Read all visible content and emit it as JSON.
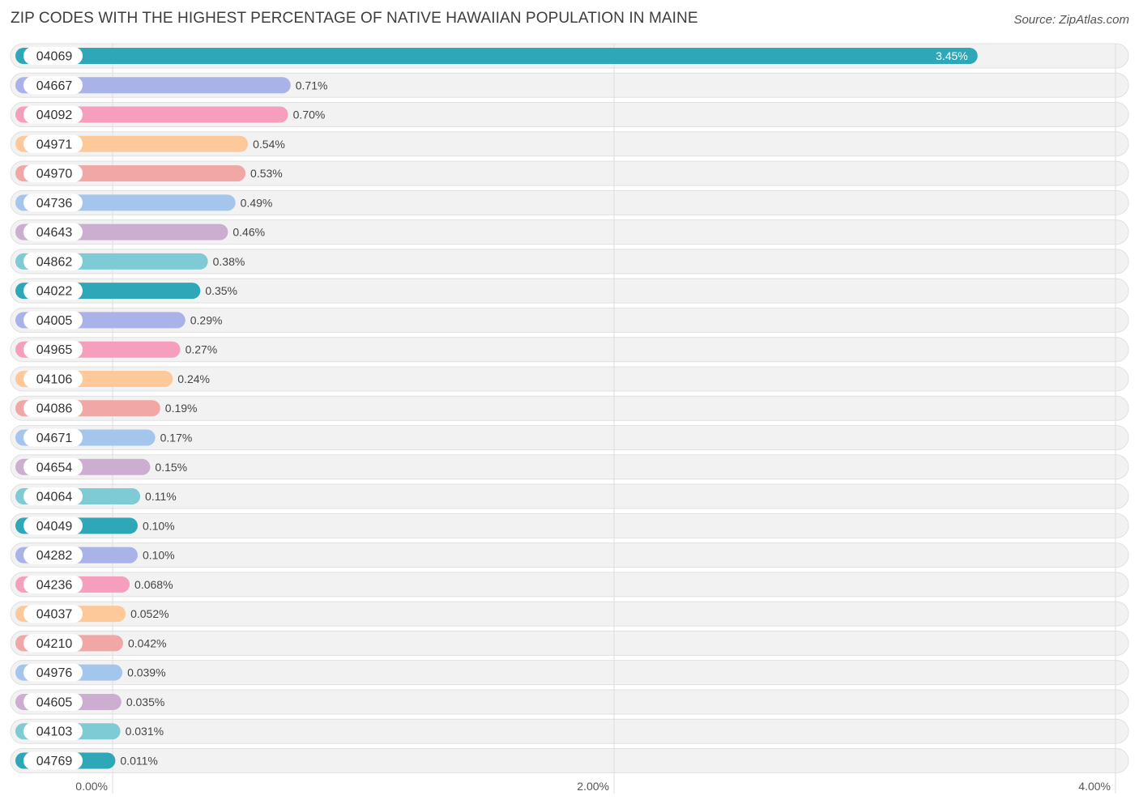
{
  "header": {
    "title": "ZIP CODES WITH THE HIGHEST PERCENTAGE OF NATIVE HAWAIIAN POPULATION IN MAINE",
    "source": "Source: ZipAtlas.com"
  },
  "colors": {
    "palette": [
      "#2ea7b8",
      "#a9b3e8",
      "#f59ebd",
      "#fdc99a",
      "#f0a7a6",
      "#a5c6ec",
      "#ccaed1",
      "#7ecbd5"
    ],
    "track": "#f2f2f2",
    "track_border": "#e0e0e0",
    "grid": "#dddddd"
  },
  "chart_data": {
    "type": "bar",
    "orientation": "horizontal",
    "title": "ZIP CODES WITH THE HIGHEST PERCENTAGE OF NATIVE HAWAIIAN POPULATION IN MAINE",
    "xlabel": "",
    "ylabel": "",
    "xlim": [
      0,
      4
    ],
    "x_ticks": [
      0,
      2,
      4
    ],
    "x_tick_labels": [
      "0.00%",
      "2.00%",
      "4.00%"
    ],
    "categories": [
      "04069",
      "04667",
      "04092",
      "04971",
      "04970",
      "04736",
      "04643",
      "04862",
      "04022",
      "04005",
      "04965",
      "04106",
      "04086",
      "04671",
      "04654",
      "04064",
      "04049",
      "04282",
      "04236",
      "04037",
      "04210",
      "04976",
      "04605",
      "04103",
      "04769"
    ],
    "values": [
      3.45,
      0.71,
      0.7,
      0.54,
      0.53,
      0.49,
      0.46,
      0.38,
      0.35,
      0.29,
      0.27,
      0.24,
      0.19,
      0.17,
      0.15,
      0.11,
      0.1,
      0.1,
      0.068,
      0.052,
      0.042,
      0.039,
      0.035,
      0.031,
      0.011
    ],
    "value_labels": [
      "3.45%",
      "0.71%",
      "0.70%",
      "0.54%",
      "0.53%",
      "0.49%",
      "0.46%",
      "0.38%",
      "0.35%",
      "0.29%",
      "0.27%",
      "0.24%",
      "0.19%",
      "0.17%",
      "0.15%",
      "0.11%",
      "0.10%",
      "0.10%",
      "0.068%",
      "0.052%",
      "0.042%",
      "0.039%",
      "0.035%",
      "0.031%",
      "0.011%"
    ],
    "grid": true
  }
}
